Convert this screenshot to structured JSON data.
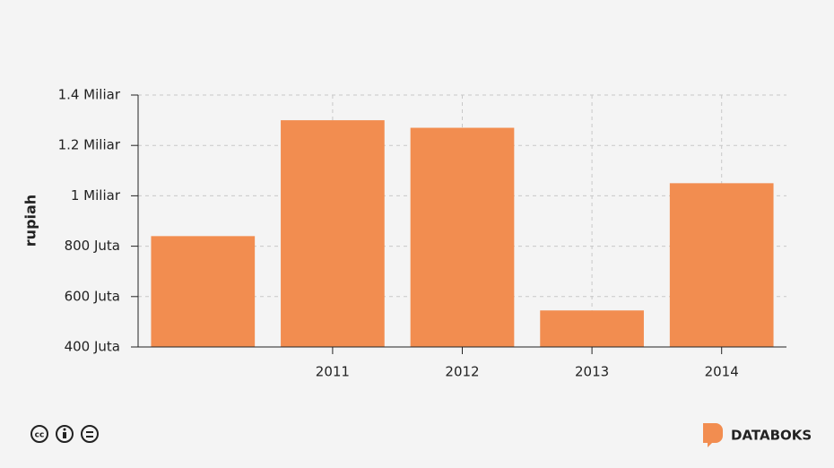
{
  "chart_data": {
    "type": "bar",
    "y_label": "rupiah",
    "categories": [
      null,
      "2011",
      "2012",
      "2013",
      "2014"
    ],
    "values": [
      840000000,
      1300000000,
      1270000000,
      545000000,
      1050000000
    ],
    "color": "#f28d50",
    "ylim": [
      400000000,
      1400000000
    ],
    "yticks": [
      {
        "value": 400000000,
        "label": "400 Juta"
      },
      {
        "value": 600000000,
        "label": "600 Juta"
      },
      {
        "value": 800000000,
        "label": "800 Juta"
      },
      {
        "value": 1000000000,
        "label": "1 Miliar"
      },
      {
        "value": 1200000000,
        "label": "1.2 Miliar"
      },
      {
        "value": 1400000000,
        "label": "1.4 Miliar"
      }
    ],
    "grid": true
  },
  "footer": {
    "brand": "DATABOKS"
  }
}
